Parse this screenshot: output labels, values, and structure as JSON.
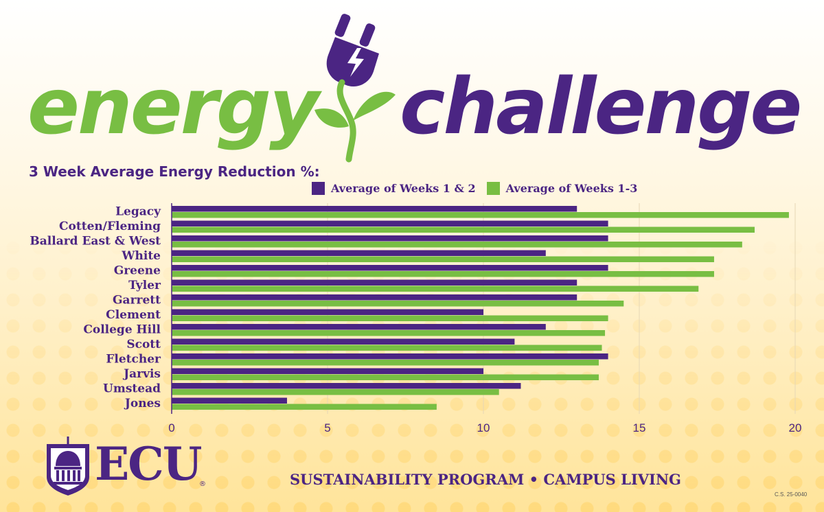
{
  "header": {
    "word_left": "energy",
    "word_right": "challenge",
    "word_left_color": "#78be43",
    "word_right_color": "#4b2583"
  },
  "heading": "3 Week Average Energy Reduction %:",
  "legend": [
    {
      "label": "Average of Weeks 1 & 2",
      "color": "#4b2583"
    },
    {
      "label": "Average of Weeks 1-3",
      "color": "#78be43"
    }
  ],
  "chart_data": {
    "type": "bar",
    "orientation": "horizontal",
    "categories": [
      "Legacy",
      "Cotten/Fleming",
      "Ballard East & West",
      "White",
      "Greene",
      "Tyler",
      "Garrett",
      "Clement",
      "College Hill",
      "Scott",
      "Fletcher",
      "Jarvis",
      "Umstead",
      "Jones"
    ],
    "series": [
      {
        "name": "Average of Weeks 1 & 2",
        "color": "#4b2583",
        "values": [
          13,
          14,
          14,
          12,
          14,
          13,
          13,
          10,
          12,
          11,
          14,
          10,
          11.2,
          3.7
        ]
      },
      {
        "name": "Average of Weeks 1-3",
        "color": "#78be43",
        "values": [
          19.8,
          18.7,
          18.3,
          17.4,
          17.4,
          16.9,
          14.5,
          14,
          13.9,
          13.8,
          13.7,
          13.7,
          10.5,
          8.5
        ]
      }
    ],
    "xlim": [
      0,
      20
    ],
    "xticks": [
      "0",
      "5",
      "10",
      "15",
      "20"
    ],
    "grid": "vertical",
    "legend_position": "top"
  },
  "logo": {
    "text": "ECU",
    "registered": "®"
  },
  "footer": {
    "program": "SUSTAINABILITY PROGRAM • CAMPUS LIVING",
    "code": "C.S. 25-0040"
  }
}
